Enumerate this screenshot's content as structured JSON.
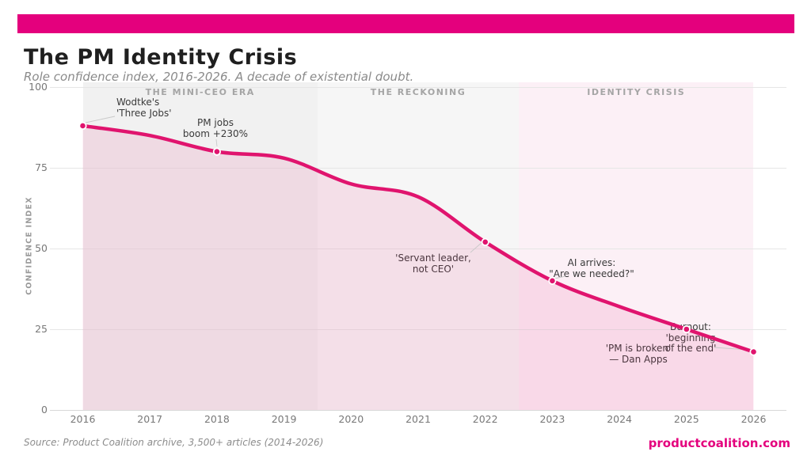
{
  "page": {
    "title": "The PM Identity Crisis",
    "subtitle": "Role confidence index, 2016-2026. A decade of existential doubt.",
    "source": "Source: Product Coalition archive, 3,500+ articles (2014-2026)",
    "site": "productcoalition.com",
    "brand_color": "#E4007D"
  },
  "chart_data": {
    "type": "line",
    "title": "The PM Identity Crisis",
    "subtitle": "Role confidence index, 2016-2026. A decade of existential doubt.",
    "xlabel": "",
    "ylabel": "CONFIDENCE INDEX",
    "x": [
      2016,
      2017,
      2018,
      2019,
      2020,
      2021,
      2022,
      2023,
      2024,
      2025,
      2026
    ],
    "series": [
      {
        "name": "Role confidence index",
        "values": [
          88,
          85,
          80,
          78,
          70,
          66,
          52,
          40,
          32,
          25,
          18
        ]
      }
    ],
    "ylim": [
      0,
      100
    ],
    "yticks": [
      0,
      25,
      50,
      75,
      100
    ],
    "grid": true,
    "legend": "none",
    "line_color": "#E0146E",
    "fill_color": "rgba(224,20,110,0.10)",
    "marker_years": [
      2016,
      2018,
      2022,
      2023,
      2025,
      2026
    ],
    "bands": [
      {
        "label": "THE MINI-CEO ERA",
        "from": 2016,
        "to": 2019.5,
        "color": "#F1F1F1"
      },
      {
        "label": "THE RECKONING",
        "from": 2019.5,
        "to": 2022.5,
        "color": "#F6F6F6"
      },
      {
        "label": "IDENTITY CRISIS",
        "from": 2022.5,
        "to": 2026,
        "color": "#FCF0F6"
      }
    ],
    "annotations": [
      {
        "id": "wodtke",
        "text": "Wodtke's\n'Three Jobs'",
        "year": 2016,
        "value": 88
      },
      {
        "id": "pm-jobs",
        "text": "PM jobs\nboom +230%",
        "year": 2018,
        "value": 80
      },
      {
        "id": "servant",
        "text": "'Servant leader,\nnot CEO'",
        "year": 2022,
        "value": 52
      },
      {
        "id": "ai",
        "text": "AI arrives:\n\"Are we needed?\"",
        "year": 2023,
        "value": 40
      },
      {
        "id": "burnout",
        "text": "Burnout:\n'beginning\nof the end'",
        "year": 2026,
        "value": 18
      },
      {
        "id": "broken",
        "text": "'PM is broken'\n— Dan Apps",
        "year": 2024,
        "value": 32
      }
    ]
  }
}
